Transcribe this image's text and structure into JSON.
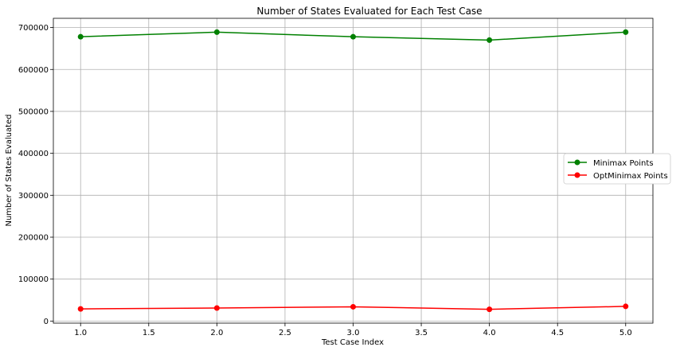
{
  "chart_data": {
    "type": "line",
    "title": "Number of States Evaluated for Each Test Case",
    "xlabel": "Test Case Index",
    "ylabel": "Number of States Evaluated",
    "x": [
      1.0,
      2.0,
      3.0,
      4.0,
      5.0
    ],
    "xlim": [
      0.8,
      5.2
    ],
    "ylim": [
      -5000,
      722000
    ],
    "xticks": [
      "1.0",
      "1.5",
      "2.0",
      "2.5",
      "3.0",
      "3.5",
      "4.0",
      "4.5",
      "5.0"
    ],
    "xtick_values": [
      1.0,
      1.5,
      2.0,
      2.5,
      3.0,
      3.5,
      4.0,
      4.5,
      5.0
    ],
    "yticks": [
      "0",
      "100000",
      "200000",
      "300000",
      "400000",
      "500000",
      "600000",
      "700000"
    ],
    "ytick_values": [
      0,
      100000,
      200000,
      300000,
      400000,
      500000,
      600000,
      700000
    ],
    "grid": true,
    "legend_position": "center-right",
    "series": [
      {
        "name": "Minimax Points",
        "color": "#008000",
        "marker": "circle",
        "values": [
          678000,
          689000,
          678000,
          670000,
          689000
        ]
      },
      {
        "name": "OptMinimax Points",
        "color": "#ff0000",
        "marker": "circle",
        "values": [
          29000,
          31000,
          34000,
          28000,
          35000
        ]
      }
    ]
  }
}
